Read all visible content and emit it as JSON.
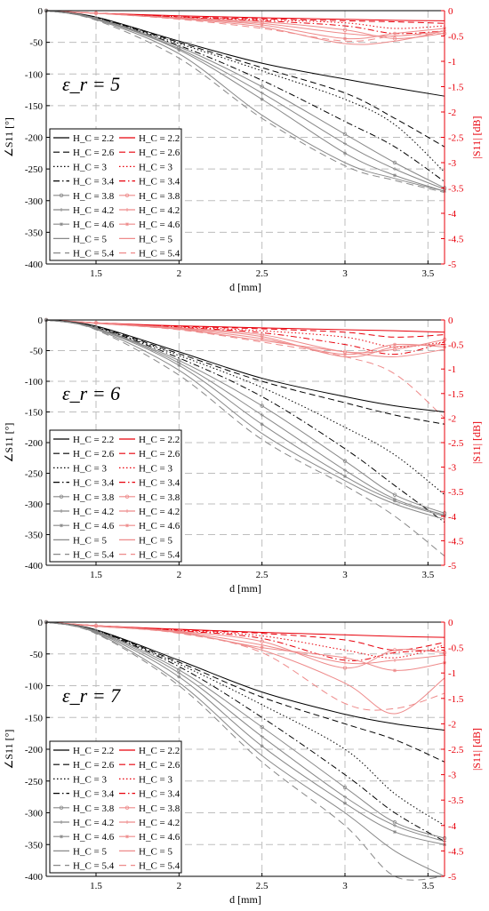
{
  "legend_labels": [
    "H_C = 2.2",
    "H_C = 2.6",
    "H_C = 3",
    "H_C = 3.4",
    "H_C = 3.8",
    "H_C = 4.2",
    "H_C = 4.6",
    "H_C = 5",
    "H_C = 5.4"
  ],
  "colors": {
    "phase": "#000000",
    "phase_light": "#888888",
    "mag": "#e8000b",
    "mag_light": "#ee8a8a",
    "grid": "#bdbdbd"
  },
  "chart_data": [
    {
      "type": "line",
      "annotation": "ε_r = 5",
      "xlabel": "d [mm]",
      "ylabel_left": "∠S11 [°]",
      "ylabel_right": "|S11| [dB]",
      "xlim": [
        1.2,
        3.6
      ],
      "ylim_left": [
        -400,
        0
      ],
      "ylim_right": [
        -5,
        0
      ],
      "x_ticks": [
        1.5,
        2,
        2.5,
        3,
        3.5
      ],
      "y_ticks_left": [
        0,
        -50,
        -100,
        -150,
        -200,
        -250,
        -300,
        -350,
        -400
      ],
      "y_ticks_right": [
        0,
        -0.5,
        -1,
        -1.5,
        -2,
        -2.5,
        -3,
        -3.5,
        -4,
        -4.5,
        -5
      ],
      "grid": true,
      "legend_position": "bottom-left",
      "x": [
        1.2,
        1.5,
        2.0,
        2.5,
        3.0,
        3.3,
        3.6
      ],
      "phase_series": [
        {
          "name": "H_C = 2.2",
          "values": [
            0,
            -10,
            -48,
            -83,
            -108,
            -122,
            -135
          ]
        },
        {
          "name": "H_C = 2.6",
          "values": [
            0,
            -11,
            -50,
            -90,
            -130,
            -170,
            -215
          ]
        },
        {
          "name": "H_C = 3",
          "values": [
            0,
            -11,
            -52,
            -95,
            -140,
            -180,
            -255
          ]
        },
        {
          "name": "H_C = 3.4",
          "values": [
            0,
            -12,
            -55,
            -110,
            -175,
            -215,
            -270
          ]
        },
        {
          "name": "H_C = 3.8",
          "values": [
            0,
            -12,
            -57,
            -120,
            -195,
            -240,
            -280
          ]
        },
        {
          "name": "H_C = 4.2",
          "values": [
            0,
            -12,
            -60,
            -130,
            -210,
            -250,
            -282
          ]
        },
        {
          "name": "H_C = 4.6",
          "values": [
            0,
            -13,
            -62,
            -140,
            -225,
            -260,
            -285
          ]
        },
        {
          "name": "H_C = 5",
          "values": [
            0,
            -14,
            -68,
            -165,
            -240,
            -265,
            -285
          ]
        },
        {
          "name": "H_C = 5.4",
          "values": [
            0,
            -15,
            -75,
            -170,
            -245,
            -268,
            -287
          ]
        }
      ],
      "mag_series": [
        {
          "name": "H_C = 2.2",
          "values": [
            0,
            -0.05,
            -0.1,
            -0.14,
            -0.17,
            -0.19,
            -0.2
          ]
        },
        {
          "name": "H_C = 2.6",
          "values": [
            0,
            -0.05,
            -0.12,
            -0.16,
            -0.2,
            -0.22,
            -0.25
          ]
        },
        {
          "name": "H_C = 3",
          "values": [
            0,
            -0.05,
            -0.12,
            -0.18,
            -0.24,
            -0.35,
            -0.3
          ]
        },
        {
          "name": "H_C = 3.4",
          "values": [
            0,
            -0.05,
            -0.13,
            -0.2,
            -0.3,
            -0.45,
            -0.4
          ]
        },
        {
          "name": "H_C = 3.8",
          "values": [
            0,
            -0.05,
            -0.14,
            -0.22,
            -0.38,
            -0.55,
            -0.45
          ]
        },
        {
          "name": "H_C = 4.2",
          "values": [
            0,
            -0.05,
            -0.15,
            -0.25,
            -0.45,
            -0.5,
            -0.4
          ]
        },
        {
          "name": "H_C = 4.6",
          "values": [
            0,
            -0.05,
            -0.15,
            -0.28,
            -0.55,
            -0.45,
            -0.35
          ]
        },
        {
          "name": "H_C = 5",
          "values": [
            0,
            -0.05,
            -0.16,
            -0.32,
            -0.65,
            -0.6,
            -0.4
          ]
        },
        {
          "name": "H_C = 5.4",
          "values": [
            0,
            -0.05,
            -0.17,
            -0.35,
            -0.6,
            -0.5,
            -0.45
          ]
        }
      ]
    },
    {
      "type": "line",
      "annotation": "ε_r = 6",
      "xlabel": "d [mm]",
      "ylabel_left": "∠S11 [°]",
      "ylabel_right": "|S11| [dB]",
      "xlim": [
        1.2,
        3.6
      ],
      "ylim_left": [
        -400,
        0
      ],
      "ylim_right": [
        -5,
        0
      ],
      "x_ticks": [
        1.5,
        2,
        2.5,
        3,
        3.5
      ],
      "y_ticks_left": [
        0,
        -50,
        -100,
        -150,
        -200,
        -250,
        -300,
        -350,
        -400
      ],
      "y_ticks_right": [
        0,
        -0.5,
        -1,
        -1.5,
        -2,
        -2.5,
        -3,
        -3.5,
        -4,
        -4.5,
        -5
      ],
      "grid": true,
      "legend_position": "bottom-left",
      "x": [
        1.2,
        1.5,
        2.0,
        2.5,
        3.0,
        3.3,
        3.6
      ],
      "phase_series": [
        {
          "name": "H_C = 2.2",
          "values": [
            0,
            -10,
            -52,
            -95,
            -125,
            -140,
            -150
          ]
        },
        {
          "name": "H_C = 2.6",
          "values": [
            0,
            -11,
            -55,
            -100,
            -135,
            -155,
            -170
          ]
        },
        {
          "name": "H_C = 3",
          "values": [
            0,
            -12,
            -58,
            -110,
            -175,
            -220,
            -285
          ]
        },
        {
          "name": "H_C = 3.4",
          "values": [
            0,
            -12,
            -62,
            -125,
            -210,
            -270,
            -330
          ]
        },
        {
          "name": "H_C = 3.8",
          "values": [
            0,
            -13,
            -66,
            -140,
            -230,
            -285,
            -315
          ]
        },
        {
          "name": "H_C = 4.2",
          "values": [
            0,
            -13,
            -70,
            -155,
            -245,
            -292,
            -318
          ]
        },
        {
          "name": "H_C = 4.6",
          "values": [
            0,
            -14,
            -74,
            -170,
            -255,
            -295,
            -320
          ]
        },
        {
          "name": "H_C = 5",
          "values": [
            0,
            -15,
            -82,
            -185,
            -262,
            -300,
            -325
          ]
        },
        {
          "name": "H_C = 5.4",
          "values": [
            0,
            -16,
            -90,
            -195,
            -270,
            -320,
            -385
          ]
        }
      ],
      "mag_series": [
        {
          "name": "H_C = 2.2",
          "values": [
            0,
            -0.06,
            -0.12,
            -0.16,
            -0.2,
            -0.22,
            -0.25
          ]
        },
        {
          "name": "H_C = 2.6",
          "values": [
            0,
            -0.06,
            -0.13,
            -0.18,
            -0.25,
            -0.35,
            -0.3
          ]
        },
        {
          "name": "H_C = 3",
          "values": [
            0,
            -0.06,
            -0.14,
            -0.22,
            -0.35,
            -0.55,
            -0.45
          ]
        },
        {
          "name": "H_C = 3.4",
          "values": [
            0,
            -0.06,
            -0.15,
            -0.26,
            -0.5,
            -0.7,
            -0.45
          ]
        },
        {
          "name": "H_C = 3.8",
          "values": [
            0,
            -0.06,
            -0.16,
            -0.3,
            -0.65,
            -0.6,
            -0.4
          ]
        },
        {
          "name": "H_C = 4.2",
          "values": [
            0,
            -0.06,
            -0.17,
            -0.34,
            -0.75,
            -0.55,
            -0.5
          ]
        },
        {
          "name": "H_C = 4.6",
          "values": [
            0,
            -0.06,
            -0.18,
            -0.38,
            -0.7,
            -0.5,
            -0.55
          ]
        },
        {
          "name": "H_C = 5",
          "values": [
            0,
            -0.07,
            -0.19,
            -0.42,
            -0.65,
            -0.75,
            -0.6
          ]
        },
        {
          "name": "H_C = 5.4",
          "values": [
            0,
            -0.07,
            -0.2,
            -0.45,
            -0.75,
            -1.1,
            -2.0
          ]
        }
      ]
    },
    {
      "type": "line",
      "annotation": "ε_r = 7",
      "xlabel": "d [mm]",
      "ylabel_left": "∠S11 [°]",
      "ylabel_right": "|S11| [dB]",
      "xlim": [
        1.2,
        3.6
      ],
      "ylim_left": [
        -400,
        0
      ],
      "ylim_right": [
        -5,
        0
      ],
      "x_ticks": [
        1.5,
        2,
        2.5,
        3,
        3.5
      ],
      "y_ticks_left": [
        0,
        -50,
        -100,
        -150,
        -200,
        -250,
        -300,
        -350,
        -400
      ],
      "y_ticks_right": [
        0,
        -0.5,
        -1,
        -1.5,
        -2,
        -2.5,
        -3,
        -3.5,
        -4,
        -4.5,
        -5
      ],
      "grid": true,
      "legend_position": "bottom-left",
      "x": [
        1.2,
        1.5,
        2.0,
        2.5,
        3.0,
        3.3,
        3.6
      ],
      "phase_series": [
        {
          "name": "H_C = 2.2",
          "values": [
            0,
            -12,
            -60,
            -110,
            -145,
            -160,
            -170
          ]
        },
        {
          "name": "H_C = 2.6",
          "values": [
            0,
            -13,
            -63,
            -118,
            -160,
            -185,
            -220
          ]
        },
        {
          "name": "H_C = 3",
          "values": [
            0,
            -13,
            -66,
            -130,
            -200,
            -270,
            -320
          ]
        },
        {
          "name": "H_C = 3.4",
          "values": [
            0,
            -14,
            -70,
            -150,
            -240,
            -300,
            -345
          ]
        },
        {
          "name": "H_C = 3.8",
          "values": [
            0,
            -14,
            -75,
            -165,
            -260,
            -315,
            -340
          ]
        },
        {
          "name": "H_C = 4.2",
          "values": [
            0,
            -15,
            -80,
            -180,
            -275,
            -320,
            -345
          ]
        },
        {
          "name": "H_C = 4.6",
          "values": [
            0,
            -16,
            -86,
            -195,
            -285,
            -330,
            -350
          ]
        },
        {
          "name": "H_C = 5",
          "values": [
            0,
            -17,
            -95,
            -210,
            -300,
            -360,
            -400
          ]
        },
        {
          "name": "H_C = 5.4",
          "values": [
            0,
            -18,
            -100,
            -220,
            -320,
            -400,
            -400
          ]
        }
      ],
      "mag_series": [
        {
          "name": "H_C = 2.2",
          "values": [
            0,
            -0.07,
            -0.14,
            -0.2,
            -0.25,
            -0.28,
            -0.3
          ]
        },
        {
          "name": "H_C = 2.6",
          "values": [
            0,
            -0.07,
            -0.15,
            -0.22,
            -0.35,
            -0.55,
            -0.4
          ]
        },
        {
          "name": "H_C = 3",
          "values": [
            0,
            -0.07,
            -0.16,
            -0.27,
            -0.55,
            -0.7,
            -0.45
          ]
        },
        {
          "name": "H_C = 3.4",
          "values": [
            0,
            -0.07,
            -0.17,
            -0.32,
            -0.75,
            -0.6,
            -0.55
          ]
        },
        {
          "name": "H_C = 3.8",
          "values": [
            0,
            -0.07,
            -0.18,
            -0.38,
            -0.9,
            -0.55,
            -0.6
          ]
        },
        {
          "name": "H_C = 4.2",
          "values": [
            0,
            -0.07,
            -0.19,
            -0.45,
            -0.8,
            -0.75,
            -0.65
          ]
        },
        {
          "name": "H_C = 4.6",
          "values": [
            0,
            -0.08,
            -0.2,
            -0.5,
            -0.7,
            -0.95,
            -0.8
          ]
        },
        {
          "name": "H_C = 5",
          "values": [
            0,
            -0.08,
            -0.21,
            -0.55,
            -1.2,
            -1.8,
            -1.1
          ]
        },
        {
          "name": "H_C = 5.4",
          "values": [
            0,
            -0.08,
            -0.22,
            -0.6,
            -1.6,
            -1.7,
            -1.4
          ]
        }
      ]
    }
  ]
}
